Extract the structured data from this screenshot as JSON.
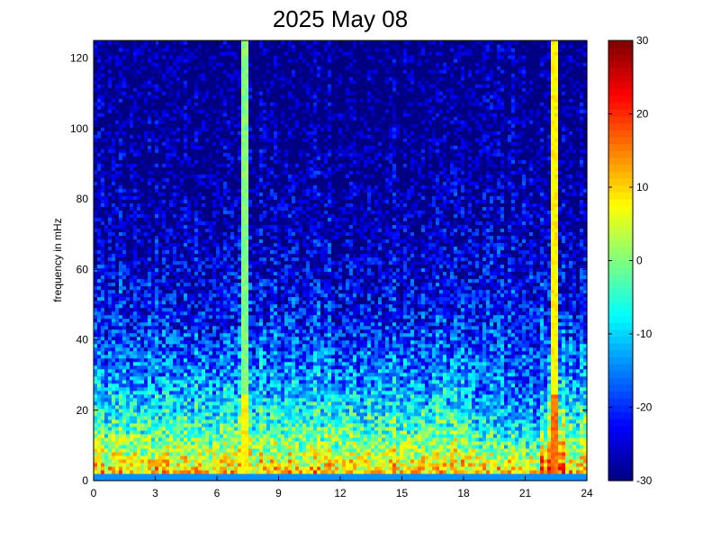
{
  "chart_data": {
    "type": "heatmap",
    "title": "2025 May 08",
    "xlabel": "",
    "ylabel": "frequency in mHz",
    "xlim": [
      0,
      24
    ],
    "ylim": [
      0,
      125
    ],
    "x_ticks": [
      0,
      3,
      6,
      9,
      12,
      15,
      18,
      21,
      24
    ],
    "y_ticks": [
      0,
      20,
      40,
      60,
      80,
      100,
      120
    ],
    "colorbar": {
      "range": [
        -30,
        30
      ],
      "ticks": [
        -30,
        -20,
        -10,
        0,
        10,
        20,
        30
      ],
      "colormap": "jet"
    },
    "grid": false,
    "notable_features": [
      {
        "type": "vertical_band",
        "x": 7.3,
        "value": 0,
        "label": ""
      },
      {
        "type": "vertical_band",
        "x": 22.5,
        "value": 8,
        "label": ""
      }
    ]
  }
}
